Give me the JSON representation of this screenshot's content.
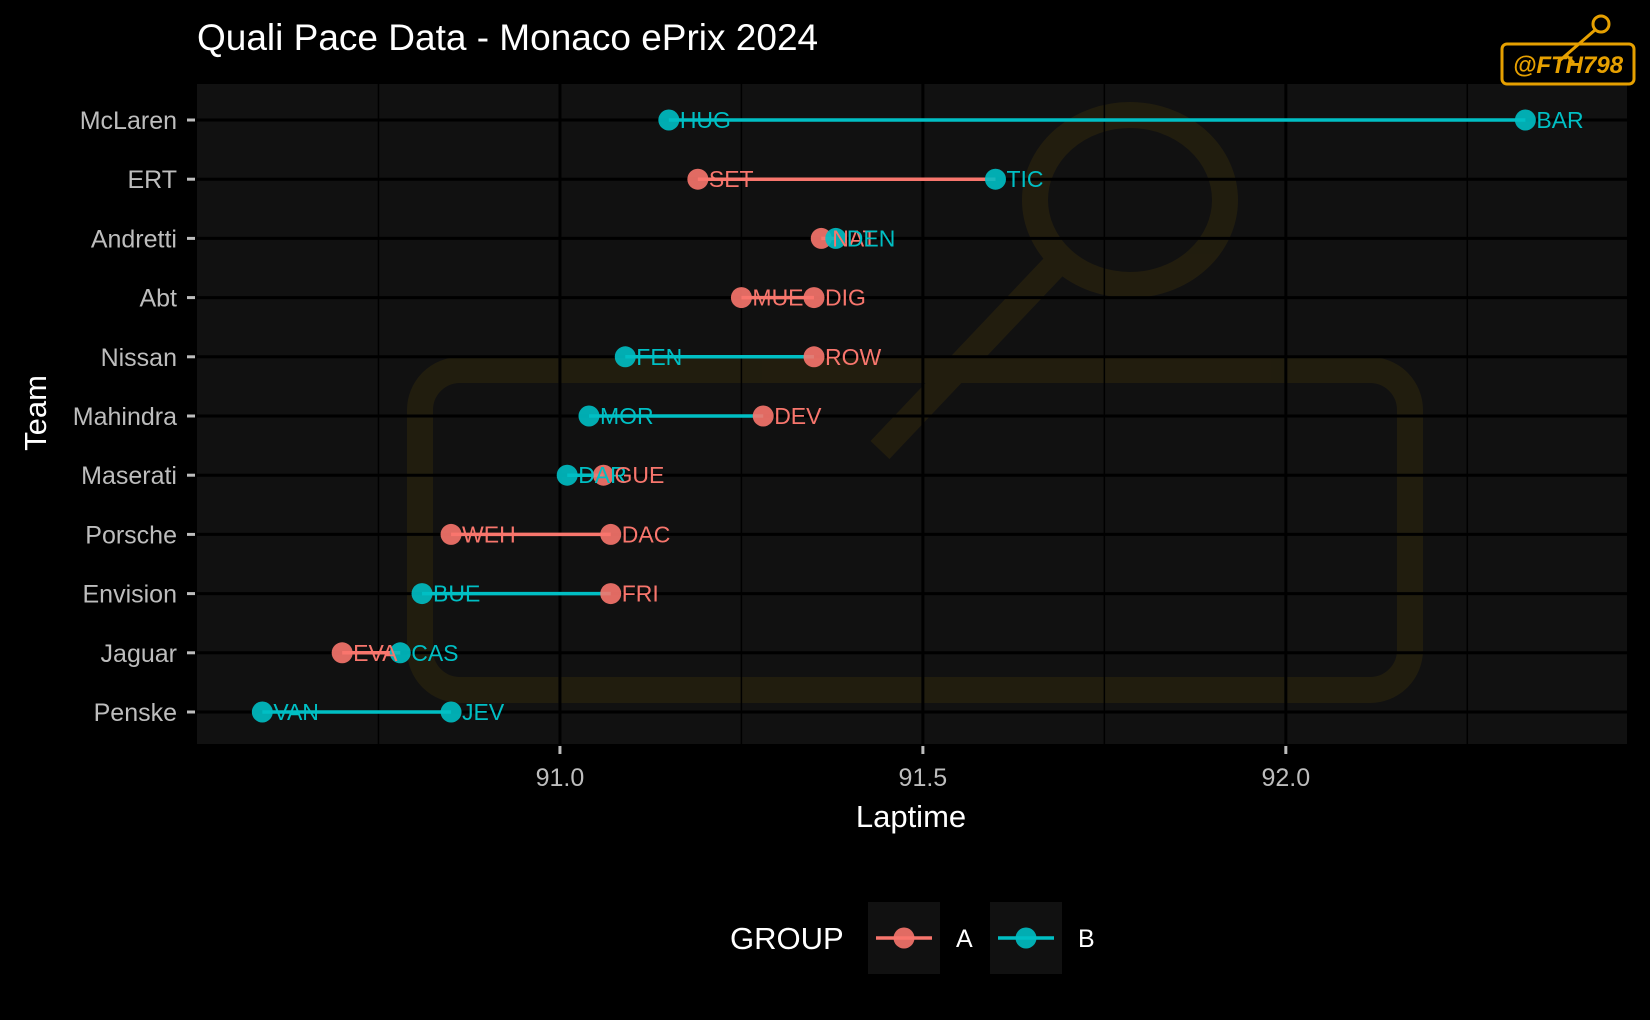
{
  "chart_data": {
    "type": "dumbbell",
    "title": "Quali Pace Data - Monaco ePrix 2024",
    "xlabel": "Laptime",
    "ylabel": "Team",
    "xlim": [
      90.5,
      92.47
    ],
    "xticks": [
      "91.0",
      "91.5",
      "92.0"
    ],
    "xtick_values": [
      91.0,
      91.5,
      92.0
    ],
    "grid": true,
    "legend": {
      "title": "GROUP",
      "position": "bottom",
      "entries": [
        {
          "label": "A",
          "color": "#f8766d"
        },
        {
          "label": "B",
          "color": "#00bfc4"
        }
      ]
    },
    "colors": {
      "A": "#f8766d",
      "B": "#00bfc4"
    },
    "teams": [
      {
        "team": "McLaren",
        "points": [
          {
            "driver": "HUG",
            "laptime": 91.15,
            "group": "B"
          },
          {
            "driver": "BAR",
            "laptime": 92.33,
            "group": "B"
          }
        ]
      },
      {
        "team": "ERT",
        "points": [
          {
            "driver": "SET",
            "laptime": 91.19,
            "group": "A"
          },
          {
            "driver": "TIC",
            "laptime": 91.6,
            "group": "B"
          }
        ]
      },
      {
        "team": "Andretti",
        "points": [
          {
            "driver": "NAT",
            "laptime": 91.36,
            "group": "A"
          },
          {
            "driver": "DEN",
            "laptime": 91.38,
            "group": "B"
          }
        ]
      },
      {
        "team": "Abt",
        "points": [
          {
            "driver": "MUE",
            "laptime": 91.25,
            "group": "A"
          },
          {
            "driver": "DIG",
            "laptime": 91.35,
            "group": "A"
          }
        ]
      },
      {
        "team": "Nissan",
        "points": [
          {
            "driver": "FEN",
            "laptime": 91.09,
            "group": "B"
          },
          {
            "driver": "ROW",
            "laptime": 91.35,
            "group": "A"
          }
        ]
      },
      {
        "team": "Mahindra",
        "points": [
          {
            "driver": "MOR",
            "laptime": 91.04,
            "group": "B"
          },
          {
            "driver": "DEV",
            "laptime": 91.28,
            "group": "A"
          }
        ]
      },
      {
        "team": "Maserati",
        "points": [
          {
            "driver": "DAR",
            "laptime": 91.01,
            "group": "B"
          },
          {
            "driver": "GUE",
            "laptime": 91.06,
            "group": "A"
          }
        ]
      },
      {
        "team": "Porsche",
        "points": [
          {
            "driver": "WEH",
            "laptime": 90.85,
            "group": "A"
          },
          {
            "driver": "DAC",
            "laptime": 91.07,
            "group": "A"
          }
        ]
      },
      {
        "team": "Envision",
        "points": [
          {
            "driver": "BUE",
            "laptime": 90.81,
            "group": "B"
          },
          {
            "driver": "FRI",
            "laptime": 91.07,
            "group": "A"
          }
        ]
      },
      {
        "team": "Jaguar",
        "points": [
          {
            "driver": "EVA",
            "laptime": 90.7,
            "group": "A"
          },
          {
            "driver": "CAS",
            "laptime": 90.78,
            "group": "B"
          }
        ]
      },
      {
        "team": "Penske",
        "points": [
          {
            "driver": "VAN",
            "laptime": 90.59,
            "group": "B"
          },
          {
            "driver": "JEV",
            "laptime": 90.85,
            "group": "B"
          }
        ]
      }
    ]
  },
  "watermark": {
    "text": "@FTH798",
    "color": "#e6a000"
  }
}
